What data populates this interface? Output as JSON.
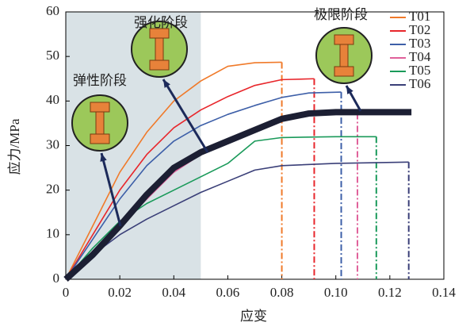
{
  "chart_data": {
    "type": "line",
    "xlabel": "应变",
    "ylabel": "应力/MPa",
    "xlim": [
      0,
      0.14
    ],
    "ylim": [
      0,
      60
    ],
    "xticks": [
      0,
      0.02,
      0.04,
      0.06,
      0.08,
      {
        "value": 0.1,
        "label": "0.10"
      },
      0.12,
      0.14
    ],
    "yticks": [
      0,
      10,
      20,
      30,
      40,
      50,
      60
    ],
    "shade_x": [
      0,
      0.05
    ],
    "annotations": [
      "弹性阶段",
      "强化阶段",
      "极限阶段"
    ],
    "series": [
      {
        "name": "T01",
        "color": "#f07a2a",
        "x": [
          0,
          0.01,
          0.02,
          0.03,
          0.04,
          0.05,
          0.06,
          0.07,
          0.08,
          0.08
        ],
        "values": [
          0,
          12,
          24,
          33,
          40,
          44.5,
          47.8,
          48.6,
          48.7,
          0
        ]
      },
      {
        "name": "T02",
        "color": "#e8262b",
        "x": [
          0,
          0.01,
          0.02,
          0.03,
          0.04,
          0.05,
          0.06,
          0.07,
          0.08,
          0.092,
          0.092
        ],
        "values": [
          0,
          10,
          20,
          28,
          34,
          38,
          41,
          43.5,
          44.8,
          45,
          0
        ]
      },
      {
        "name": "T03",
        "color": "#3d5fa8",
        "x": [
          0,
          0.01,
          0.02,
          0.03,
          0.04,
          0.05,
          0.06,
          0.07,
          0.08,
          0.09,
          0.102,
          0.102
        ],
        "values": [
          0,
          9,
          18,
          25.5,
          31,
          34.5,
          37,
          39,
          40.8,
          41.8,
          42,
          0
        ]
      },
      {
        "name": "T04",
        "color": "#e0609a",
        "x": [
          0,
          0.01,
          0.02,
          0.03,
          0.04,
          0.05,
          0.06,
          0.07,
          0.08,
          0.09,
          0.108,
          0.108
        ],
        "values": [
          0,
          6,
          12,
          18,
          24,
          28,
          31,
          34,
          36.3,
          37.1,
          37.3,
          0
        ]
      },
      {
        "name": "T05",
        "color": "#1a9a5a",
        "x": [
          0,
          0.01,
          0.02,
          0.03,
          0.04,
          0.05,
          0.06,
          0.07,
          0.08,
          0.1,
          0.115,
          0.115
        ],
        "values": [
          0,
          7,
          13,
          17,
          20,
          23,
          26,
          31,
          31.8,
          32,
          32,
          0
        ]
      },
      {
        "name": "T06",
        "color": "#3a3f78",
        "x": [
          0,
          0.01,
          0.02,
          0.03,
          0.04,
          0.05,
          0.06,
          0.07,
          0.08,
          0.1,
          0.127,
          0.127
        ],
        "values": [
          0,
          5.5,
          10,
          13.5,
          16.5,
          19.5,
          22,
          24.5,
          25.5,
          26,
          26.3,
          0
        ]
      }
    ],
    "trend": {
      "color": "#1c1f33",
      "x": [
        0,
        0.01,
        0.02,
        0.03,
        0.04,
        0.05,
        0.06,
        0.07,
        0.08,
        0.09,
        0.1,
        0.128
      ],
      "values": [
        0,
        5.5,
        12,
        19,
        25,
        28.5,
        31,
        33.5,
        36,
        37.2,
        37.5,
        37.5
      ]
    }
  }
}
